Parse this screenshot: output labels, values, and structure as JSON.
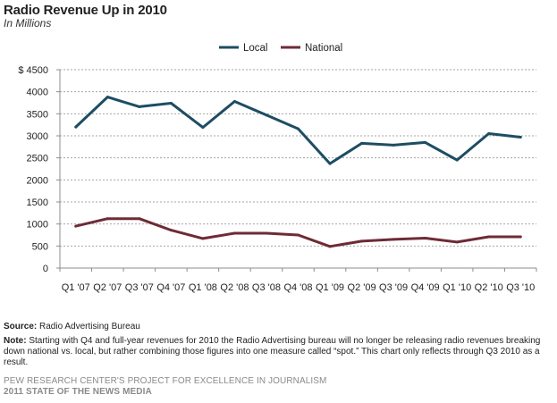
{
  "chart_data": {
    "type": "line",
    "title": "Radio Revenue  Up  in 2010",
    "subtitle": "In Millions",
    "categories": [
      "Q1 '07",
      "Q2 '07",
      "Q3 '07",
      "Q4 '07",
      "Q1 '08",
      "Q2 '08",
      "Q3 '08",
      "Q4 '08",
      "Q1 '09",
      "Q2 '09",
      "Q3 '09",
      "Q4 '09",
      "Q1 '10",
      "Q2 '10",
      "Q3 '10"
    ],
    "series": [
      {
        "name": "Local",
        "color": "#1d4d63",
        "values": [
          3200,
          3880,
          3660,
          3740,
          3190,
          3780,
          3470,
          3160,
          2370,
          2830,
          2790,
          2850,
          2450,
          3050,
          2970
        ]
      },
      {
        "name": "National",
        "color": "#6e2b36",
        "values": [
          950,
          1120,
          1120,
          860,
          670,
          790,
          790,
          750,
          490,
          610,
          650,
          680,
          590,
          710,
          710
        ]
      }
    ],
    "ylim": [
      0,
      4500
    ],
    "yticks": [
      "0",
      "500",
      "1000",
      "1500",
      "2000",
      "2500",
      "3000",
      "3500",
      "4000",
      "$ 4500"
    ],
    "ytick_values": [
      0,
      500,
      1000,
      1500,
      2000,
      2500,
      3000,
      3500,
      4000,
      4500
    ],
    "grid": true,
    "legend": "top-center"
  },
  "notes": {
    "source_label": "Source:",
    "source_text": "Radio Advertising Bureau",
    "note_label": "Note:",
    "note_text": "Starting with Q4 and full-year revenues for 2010 the Radio Advertising bureau will no longer be releasing radio revenues breaking down national vs. local, but rather combining those figures into one measure called “spot.” This chart only reflects through Q3 2010 as a result."
  },
  "footer": {
    "line1": "PEW RESEARCH CENTER'S PROJECT FOR EXCELLENCE IN JOURNALISM",
    "line2": "2011 STATE OF THE NEWS MEDIA"
  }
}
